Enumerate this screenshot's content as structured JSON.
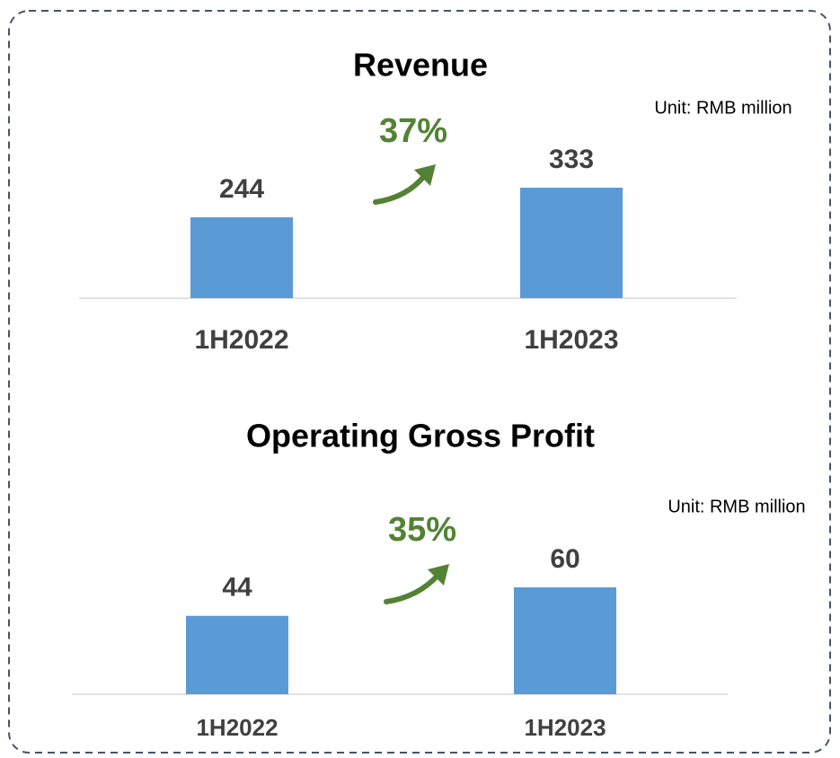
{
  "chart_data": [
    {
      "type": "bar",
      "title": "Revenue",
      "unit_note": "Unit: RMB million",
      "growth_label": "37%",
      "growth_color": "#548235",
      "categories": [
        "1H2022",
        "1H2023"
      ],
      "values": [
        244,
        333
      ],
      "color": "#5b9bd5"
    },
    {
      "type": "bar",
      "title": "Operating Gross Profit",
      "unit_note": "Unit: RMB million",
      "growth_label": "35%",
      "growth_color": "#548235",
      "categories": [
        "1H2022",
        "1H2023"
      ],
      "values": [
        44,
        60
      ],
      "color": "#5b9bd5"
    }
  ]
}
